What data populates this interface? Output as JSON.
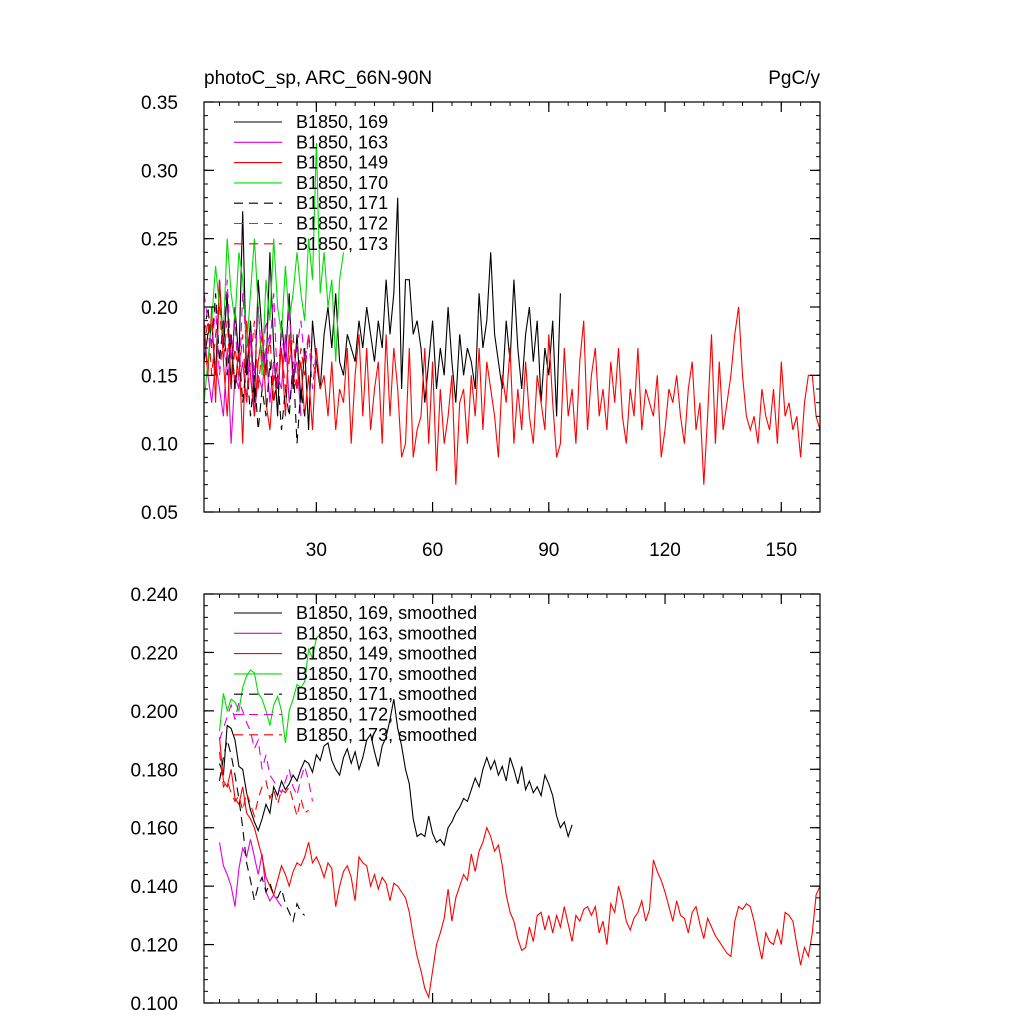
{
  "chart_data": [
    {
      "type": "line",
      "title": "photoC_sp, ARC_66N-90N",
      "units": "PgC/y",
      "xlim": [
        1,
        160
      ],
      "ylim": [
        0.05,
        0.35
      ],
      "xticks": [
        30,
        60,
        90,
        120,
        150
      ],
      "xtick_labels": [
        "30",
        "60",
        "90",
        "120",
        "150"
      ],
      "yticks": [
        0.05,
        0.1,
        0.15,
        0.2,
        0.25,
        0.3,
        0.35
      ],
      "ytick_labels": [
        "0.05",
        "0.10",
        "0.15",
        "0.20",
        "0.25",
        "0.30",
        "0.35"
      ],
      "legend_position": "top-left",
      "series": [
        {
          "name": "B1850, 169",
          "color": "#000000",
          "dash": "solid",
          "x_start": 1,
          "values": [
            0.16,
            0.18,
            0.19,
            0.15,
            0.22,
            0.17,
            0.21,
            0.14,
            0.2,
            0.16,
            0.27,
            0.15,
            0.19,
            0.13,
            0.22,
            0.18,
            0.15,
            0.24,
            0.17,
            0.12,
            0.19,
            0.16,
            0.21,
            0.14,
            0.18,
            0.13,
            0.17,
            0.11,
            0.19,
            0.16,
            0.14,
            0.18,
            0.2,
            0.17,
            0.21,
            0.16,
            0.15,
            0.18,
            0.17,
            0.16,
            0.19,
            0.17,
            0.2,
            0.18,
            0.16,
            0.19,
            0.17,
            0.22,
            0.18,
            0.21,
            0.28,
            0.14,
            0.22,
            0.22,
            0.18,
            0.19,
            0.17,
            0.13,
            0.16,
            0.19,
            0.14,
            0.17,
            0.15,
            0.2,
            0.16,
            0.13,
            0.18,
            0.15,
            0.17,
            0.16,
            0.14,
            0.21,
            0.17,
            0.19,
            0.24,
            0.18,
            0.16,
            0.14,
            0.19,
            0.16,
            0.22,
            0.17,
            0.14,
            0.18,
            0.2,
            0.16,
            0.19,
            0.13,
            0.17,
            0.15,
            0.19,
            0.12,
            0.21
          ]
        },
        {
          "name": "B1850, 163",
          "color": "#e000e0",
          "dash": "solid",
          "x_start": 1,
          "values": [
            0.19,
            0.15,
            0.13,
            0.16,
            0.14,
            0.12,
            0.17,
            0.1,
            0.15,
            0.14,
            0.16,
            0.13,
            0.18,
            0.12,
            0.15,
            0.14,
            0.17,
            0.13,
            0.16,
            0.15,
            0.14,
            0.18,
            0.13,
            0.15,
            0.16,
            0.12
          ]
        },
        {
          "name": "B1850, 149",
          "color": "#ff0000",
          "dash": "solid",
          "x_start": 1,
          "values": [
            0.18,
            0.15,
            0.2,
            0.13,
            0.22,
            0.16,
            0.12,
            0.18,
            0.14,
            0.17,
            0.1,
            0.19,
            0.15,
            0.12,
            0.16,
            0.18,
            0.13,
            0.11,
            0.15,
            0.14,
            0.17,
            0.12,
            0.18,
            0.15,
            0.14,
            0.16,
            0.12,
            0.15,
            0.11,
            0.17,
            0.14,
            0.15,
            0.12,
            0.16,
            0.11,
            0.14,
            0.13,
            0.17,
            0.1,
            0.15,
            0.18,
            0.12,
            0.17,
            0.11,
            0.14,
            0.16,
            0.1,
            0.18,
            0.12,
            0.17,
            0.14,
            0.09,
            0.1,
            0.17,
            0.09,
            0.11,
            0.12,
            0.17,
            0.1,
            0.16,
            0.08,
            0.14,
            0.1,
            0.12,
            0.15,
            0.07,
            0.13,
            0.14,
            0.1,
            0.15,
            0.12,
            0.17,
            0.11,
            0.16,
            0.14,
            0.12,
            0.09,
            0.15,
            0.13,
            0.17,
            0.1,
            0.14,
            0.11,
            0.16,
            0.12,
            0.1,
            0.15,
            0.13,
            0.11,
            0.18,
            0.13,
            0.09,
            0.1,
            0.17,
            0.12,
            0.14,
            0.1,
            0.16,
            0.19,
            0.11,
            0.15,
            0.17,
            0.12,
            0.14,
            0.11,
            0.16,
            0.13,
            0.17,
            0.12,
            0.1,
            0.14,
            0.12,
            0.17,
            0.11,
            0.14,
            0.13,
            0.12,
            0.15,
            0.09,
            0.11,
            0.14,
            0.13,
            0.15,
            0.12,
            0.1,
            0.14,
            0.16,
            0.11,
            0.13,
            0.07,
            0.12,
            0.18,
            0.1,
            0.16,
            0.11,
            0.13,
            0.15,
            0.18,
            0.2,
            0.15,
            0.12,
            0.11,
            0.12,
            0.1,
            0.14,
            0.12,
            0.11,
            0.14,
            0.1,
            0.16,
            0.12,
            0.13,
            0.11,
            0.12,
            0.09,
            0.13,
            0.15,
            0.15,
            0.12,
            0.11,
            0.09
          ]
        },
        {
          "name": "B1850, 170",
          "color": "#00dd00",
          "dash": "solid",
          "x_start": 1,
          "values": [
            0.13,
            0.16,
            0.19,
            0.23,
            0.2,
            0.18,
            0.25,
            0.21,
            0.19,
            0.24,
            0.22,
            0.17,
            0.21,
            0.25,
            0.2,
            0.15,
            0.22,
            0.19,
            0.25,
            0.2,
            0.18,
            0.23,
            0.19,
            0.21,
            0.24,
            0.21,
            0.19,
            0.25,
            0.22,
            0.32,
            0.21,
            0.24,
            0.2,
            0.22,
            0.16,
            0.22,
            0.24
          ]
        },
        {
          "name": "B1850, 171",
          "color": "#000000",
          "dash": "dash",
          "x_start": 1,
          "values": [
            0.18,
            0.2,
            0.17,
            0.21,
            0.16,
            0.19,
            0.15,
            0.18,
            0.14,
            0.17,
            0.13,
            0.16,
            0.12,
            0.15,
            0.11,
            0.14,
            0.12,
            0.16,
            0.13,
            0.15,
            0.11,
            0.14,
            0.12,
            0.16,
            0.1,
            0.14,
            0.12
          ]
        },
        {
          "name": "B1850, 172",
          "color": "#e000e0",
          "dash": "dash",
          "x_start": 1,
          "values": [
            0.21,
            0.19,
            0.17,
            0.2,
            0.15,
            0.18,
            0.22,
            0.16,
            0.19,
            0.14,
            0.21,
            0.17,
            0.18,
            0.15,
            0.2,
            0.16,
            0.19,
            0.17,
            0.21,
            0.14,
            0.18,
            0.16,
            0.2,
            0.15,
            0.17,
            0.19,
            0.16,
            0.18,
            0.14,
            0.17
          ]
        },
        {
          "name": "B1850, 173",
          "color": "#ff0000",
          "dash": "dash",
          "x_start": 1,
          "values": [
            0.17,
            0.19,
            0.15,
            0.18,
            0.2,
            0.16,
            0.19,
            0.14,
            0.17,
            0.15,
            0.18,
            0.13,
            0.16,
            0.19,
            0.14,
            0.17,
            0.15,
            0.18,
            0.13,
            0.16,
            0.17,
            0.14,
            0.16,
            0.18,
            0.14,
            0.17,
            0.15,
            0.18,
            0.16,
            0.15
          ]
        }
      ]
    },
    {
      "type": "line",
      "title": "",
      "xlim": [
        1,
        160
      ],
      "ylim": [
        0.1,
        0.24
      ],
      "xticks": [
        30,
        60,
        90,
        120,
        150
      ],
      "xtick_labels": [],
      "yticks": [
        0.1,
        0.12,
        0.14,
        0.16,
        0.18,
        0.2,
        0.22,
        0.24
      ],
      "ytick_labels": [
        "0.100",
        "0.120",
        "0.140",
        "0.160",
        "0.180",
        "0.200",
        "0.220",
        "0.240"
      ],
      "legend_position": "top-left",
      "series": [
        {
          "name": "B1850, 169, smoothed",
          "color": "#000000",
          "dash": "solid",
          "x_start": 5,
          "values": [
            0.182,
            0.178,
            0.195,
            0.194,
            0.19,
            0.181,
            0.18,
            0.172,
            0.166,
            0.162,
            0.159,
            0.163,
            0.168,
            0.165,
            0.174,
            0.171,
            0.176,
            0.173,
            0.175,
            0.178,
            0.176,
            0.18,
            0.183,
            0.182,
            0.179,
            0.185,
            0.183,
            0.188,
            0.189,
            0.183,
            0.18,
            0.178,
            0.184,
            0.187,
            0.182,
            0.186,
            0.18,
            0.184,
            0.19,
            0.192,
            0.186,
            0.181,
            0.188,
            0.191,
            0.197,
            0.204,
            0.194,
            0.188,
            0.18,
            0.175,
            0.163,
            0.157,
            0.158,
            0.157,
            0.164,
            0.158,
            0.155,
            0.156,
            0.154,
            0.16,
            0.162,
            0.165,
            0.167,
            0.17,
            0.169,
            0.173,
            0.177,
            0.174,
            0.18,
            0.184,
            0.18,
            0.183,
            0.178,
            0.181,
            0.176,
            0.184,
            0.18,
            0.175,
            0.181,
            0.173,
            0.176,
            0.172,
            0.174,
            0.171,
            0.178,
            0.175,
            0.171,
            0.164,
            0.16,
            0.162,
            0.157,
            0.161
          ]
        },
        {
          "name": "B1850, 163, smoothed",
          "color": "#e000e0",
          "dash": "solid",
          "x_start": 5,
          "values": [
            0.155,
            0.147,
            0.144,
            0.14,
            0.133,
            0.146,
            0.153,
            0.15,
            0.156,
            0.15,
            0.144,
            0.151,
            0.138,
            0.135,
            0.137,
            0.135,
            0.133
          ]
        },
        {
          "name": "B1850, 149, smoothed",
          "color": "#ff0000",
          "dash": "solid",
          "x_start": 5,
          "values": [
            0.191,
            0.176,
            0.174,
            0.18,
            0.17,
            0.168,
            0.174,
            0.165,
            0.163,
            0.16,
            0.155,
            0.15,
            0.143,
            0.14,
            0.137,
            0.142,
            0.147,
            0.144,
            0.14,
            0.145,
            0.148,
            0.147,
            0.15,
            0.155,
            0.148,
            0.15,
            0.147,
            0.143,
            0.148,
            0.146,
            0.133,
            0.14,
            0.145,
            0.147,
            0.143,
            0.135,
            0.15,
            0.148,
            0.147,
            0.14,
            0.144,
            0.139,
            0.143,
            0.141,
            0.135,
            0.141,
            0.14,
            0.138,
            0.136,
            0.131,
            0.123,
            0.116,
            0.111,
            0.105,
            0.102,
            0.111,
            0.12,
            0.124,
            0.129,
            0.139,
            0.128,
            0.136,
            0.14,
            0.144,
            0.142,
            0.151,
            0.145,
            0.152,
            0.155,
            0.16,
            0.157,
            0.152,
            0.154,
            0.147,
            0.137,
            0.131,
            0.128,
            0.122,
            0.118,
            0.119,
            0.126,
            0.121,
            0.13,
            0.131,
            0.125,
            0.13,
            0.124,
            0.13,
            0.126,
            0.133,
            0.127,
            0.121,
            0.13,
            0.128,
            0.132,
            0.133,
            0.13,
            0.133,
            0.124,
            0.128,
            0.12,
            0.134,
            0.131,
            0.14,
            0.135,
            0.128,
            0.125,
            0.129,
            0.131,
            0.135,
            0.128,
            0.132,
            0.149,
            0.145,
            0.142,
            0.138,
            0.133,
            0.128,
            0.135,
            0.13,
            0.129,
            0.124,
            0.131,
            0.133,
            0.127,
            0.122,
            0.129,
            0.126,
            0.123,
            0.121,
            0.119,
            0.117,
            0.116,
            0.128,
            0.133,
            0.132,
            0.134,
            0.133,
            0.128,
            0.121,
            0.115,
            0.124,
            0.121,
            0.12,
            0.125,
            0.12,
            0.131,
            0.13,
            0.128,
            0.12,
            0.113,
            0.119,
            0.116,
            0.124,
            0.137,
            0.14
          ]
        },
        {
          "name": "B1850, 170, smoothed",
          "color": "#00dd00",
          "dash": "solid",
          "x_start": 5,
          "values": [
            0.193,
            0.206,
            0.2,
            0.204,
            0.203,
            0.2,
            0.208,
            0.212,
            0.214,
            0.213,
            0.206,
            0.204,
            0.2,
            0.195,
            0.202,
            0.205,
            0.2,
            0.189,
            0.2,
            0.204,
            0.209,
            0.208,
            0.21,
            0.221,
            0.218,
            0.225,
            0.226
          ]
        },
        {
          "name": "B1850, 171, smoothed",
          "color": "#000000",
          "dash": "dash",
          "x_start": 5,
          "values": [
            0.176,
            0.184,
            0.19,
            0.185,
            0.178,
            0.17,
            0.16,
            0.148,
            0.142,
            0.135,
            0.14,
            0.143,
            0.138,
            0.141,
            0.137,
            0.136,
            0.139,
            0.134,
            0.131,
            0.128,
            0.134,
            0.131,
            0.13
          ]
        },
        {
          "name": "B1850, 172, smoothed",
          "color": "#e000e0",
          "dash": "dash",
          "x_start": 5,
          "values": [
            0.19,
            0.194,
            0.198,
            0.202,
            0.197,
            0.203,
            0.2,
            0.196,
            0.193,
            0.187,
            0.19,
            0.18,
            0.185,
            0.178,
            0.176,
            0.174,
            0.172,
            0.176,
            0.18,
            0.174,
            0.171,
            0.177,
            0.181,
            0.176,
            0.169
          ]
        },
        {
          "name": "B1850, 173, smoothed",
          "color": "#ff0000",
          "dash": "dash",
          "x_start": 5,
          "values": [
            0.186,
            0.174,
            0.176,
            0.172,
            0.169,
            0.171,
            0.166,
            0.172,
            0.168,
            0.164,
            0.17,
            0.174,
            0.176,
            0.17,
            0.173,
            0.168,
            0.173,
            0.172,
            0.174,
            0.169,
            0.164,
            0.17,
            0.165,
            0.166
          ]
        }
      ]
    }
  ]
}
